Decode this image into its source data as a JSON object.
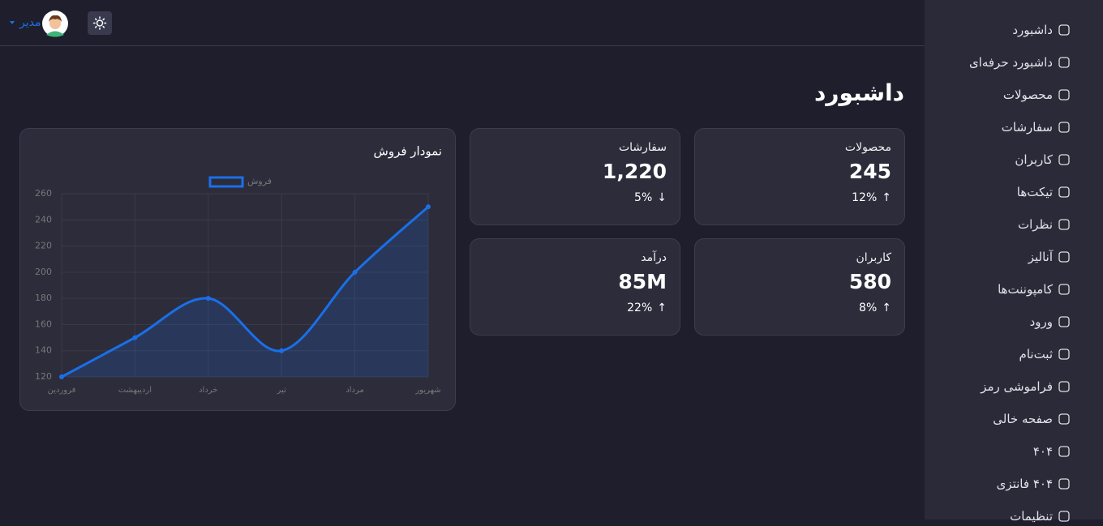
{
  "header": {
    "user": "مدیر"
  },
  "sidebar": [
    "داشبورد",
    "داشبورد حرفه‌ای",
    "محصولات",
    "سفارشات",
    "کاربران",
    "تیکت‌ها",
    "نظرات",
    "آنالیز",
    "کامپوننت‌ها",
    "ورود",
    "ثبت‌نام",
    "فراموشی رمز",
    "صفحه خالی",
    "۴۰۴",
    "۴۰۴ فانتزی",
    "تنظیمات"
  ],
  "page_title": "داشبورد",
  "cards": [
    {
      "title": "محصولات",
      "value": "245",
      "change": "12%",
      "trend": "↑"
    },
    {
      "title": "سفارشات",
      "value": "1,220",
      "change": "5%",
      "trend": "↓"
    },
    {
      "title": "کاربران",
      "value": "580",
      "change": "8%",
      "trend": "↑"
    },
    {
      "title": "درآمد",
      "value": "85M",
      "change": "22%",
      "trend": "↑"
    }
  ],
  "chart_data": {
    "type": "line",
    "title": "نمودار فروش",
    "categories": [
      "فروردین",
      "اردیبهشت",
      "خرداد",
      "تیر",
      "مرداد",
      "شهریور"
    ],
    "series": [
      {
        "name": "فروش",
        "color": "#1a6fe8",
        "values": [
          120,
          150,
          180,
          140,
          200,
          250
        ]
      }
    ],
    "ylim": [
      120,
      260
    ],
    "yticks": [
      120,
      140,
      160,
      180,
      200,
      220,
      240,
      260
    ],
    "grid": true,
    "legend": "top"
  }
}
